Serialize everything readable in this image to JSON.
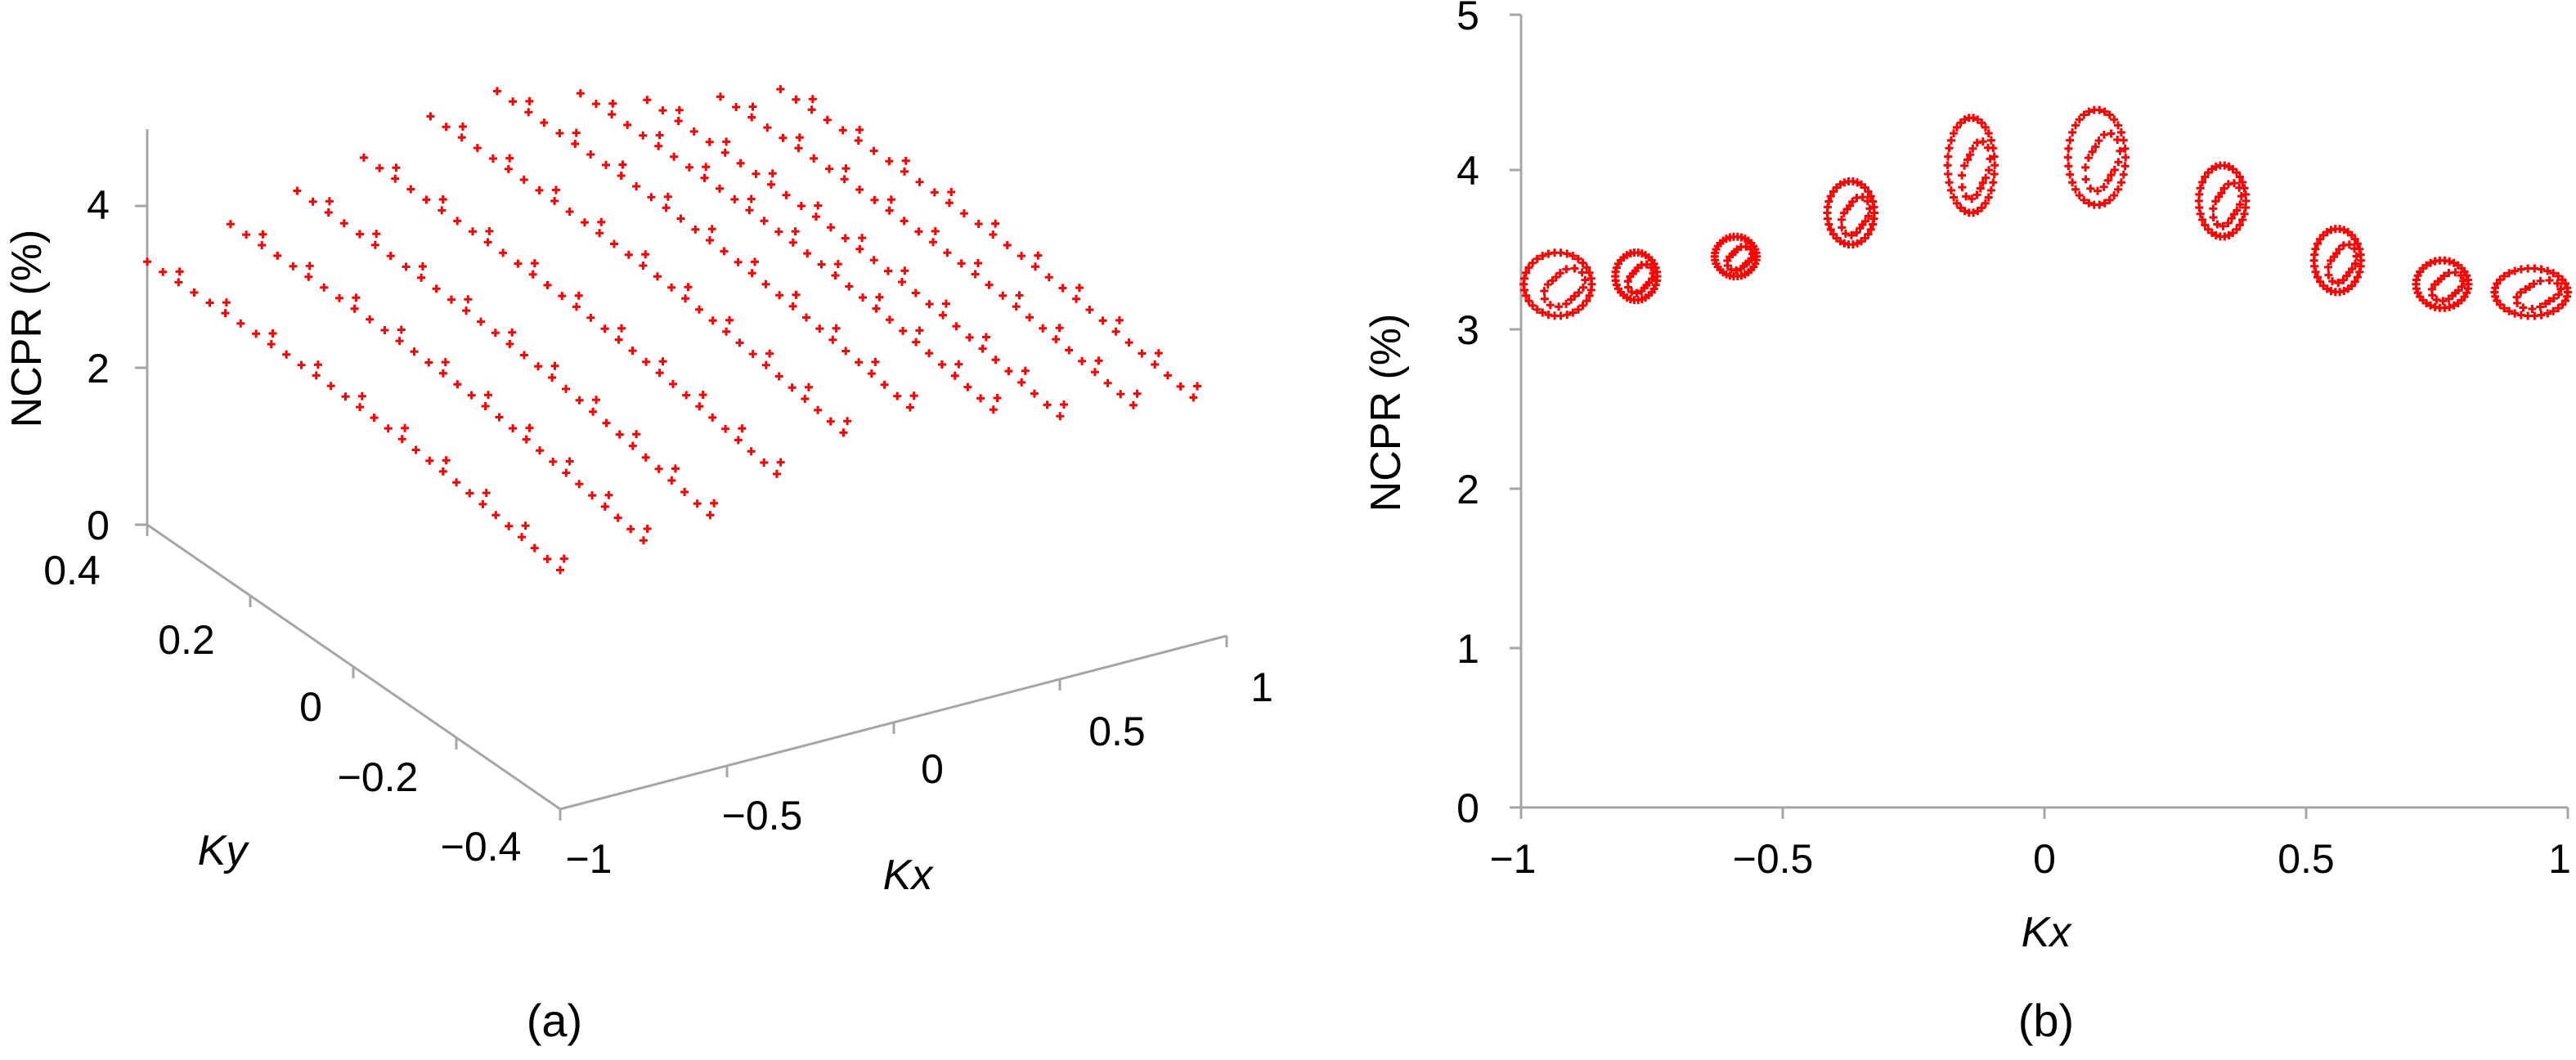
{
  "colors": {
    "marker": "#ff0000",
    "axis": "#a6a6a6",
    "background": "#ffffff"
  },
  "chart_data": [
    {
      "type": "scatter",
      "title": "",
      "panel_label": "(a)",
      "projection": "3d",
      "xlabel": "Kx",
      "ylabel": "Ky",
      "zlabel": "NCPR (%)",
      "xlim": [
        -1,
        1
      ],
      "ylim": [
        -0.4,
        0.4
      ],
      "zlim": [
        0,
        5
      ],
      "xticks": [
        "−1",
        "−0.5",
        "0",
        "0.5",
        "1"
      ],
      "yticks": [
        "−0.4",
        "−0.2",
        "0",
        "0.2",
        "0.4"
      ],
      "zticks": [
        "0",
        "2",
        "4"
      ],
      "grid": false,
      "marker": "+",
      "series": [
        {
          "kx": -1.0,
          "ncpr_ky_max": 3.3,
          "ncpr_ky_min": 3.0
        },
        {
          "kx": -0.75,
          "ncpr_ky_max": 3.5,
          "ncpr_ky_min": 3.1
        },
        {
          "kx": -0.55,
          "ncpr_ky_max": 3.7,
          "ncpr_ky_min": 3.2
        },
        {
          "kx": -0.35,
          "ncpr_ky_max": 3.9,
          "ncpr_ky_min": 3.5
        },
        {
          "kx": -0.15,
          "ncpr_ky_max": 4.2,
          "ncpr_ky_min": 3.8
        },
        {
          "kx": 0.05,
          "ncpr_ky_max": 4.3,
          "ncpr_ky_min": 3.9
        },
        {
          "kx": 0.3,
          "ncpr_ky_max": 4.0,
          "ncpr_ky_min": 3.6
        },
        {
          "kx": 0.5,
          "ncpr_ky_max": 3.7,
          "ncpr_ky_min": 3.3
        },
        {
          "kx": 0.72,
          "ncpr_ky_max": 3.5,
          "ncpr_ky_min": 3.2
        },
        {
          "kx": 0.9,
          "ncpr_ky_max": 3.4,
          "ncpr_ky_min": 3.1
        }
      ]
    },
    {
      "type": "scatter",
      "title": "",
      "panel_label": "(b)",
      "xlabel": "Kx",
      "ylabel": "NCPR (%)",
      "xlim": [
        -1,
        1
      ],
      "ylim": [
        0,
        5
      ],
      "xticks": [
        "−1",
        "−0.5",
        "0",
        "0.5",
        "1"
      ],
      "yticks": [
        "0",
        "1",
        "2",
        "3",
        "4",
        "5"
      ],
      "grid": false,
      "marker": "+",
      "clusters": [
        {
          "kx": -0.93,
          "width": 0.13,
          "ncpr_min": 3.1,
          "ncpr_max": 3.5
        },
        {
          "kx": -0.78,
          "width": 0.08,
          "ncpr_min": 3.2,
          "ncpr_max": 3.5
        },
        {
          "kx": -0.59,
          "width": 0.08,
          "ncpr_min": 3.35,
          "ncpr_max": 3.6
        },
        {
          "kx": -0.37,
          "width": 0.09,
          "ncpr_min": 3.55,
          "ncpr_max": 3.95
        },
        {
          "kx": -0.14,
          "width": 0.09,
          "ncpr_min": 3.75,
          "ncpr_max": 4.35
        },
        {
          "kx": 0.1,
          "width": 0.11,
          "ncpr_min": 3.8,
          "ncpr_max": 4.4
        },
        {
          "kx": 0.34,
          "width": 0.09,
          "ncpr_min": 3.6,
          "ncpr_max": 4.05
        },
        {
          "kx": 0.56,
          "width": 0.09,
          "ncpr_min": 3.25,
          "ncpr_max": 3.65
        },
        {
          "kx": 0.76,
          "width": 0.1,
          "ncpr_min": 3.15,
          "ncpr_max": 3.45
        },
        {
          "kx": 0.93,
          "width": 0.14,
          "ncpr_min": 3.1,
          "ncpr_max": 3.4
        }
      ]
    }
  ]
}
